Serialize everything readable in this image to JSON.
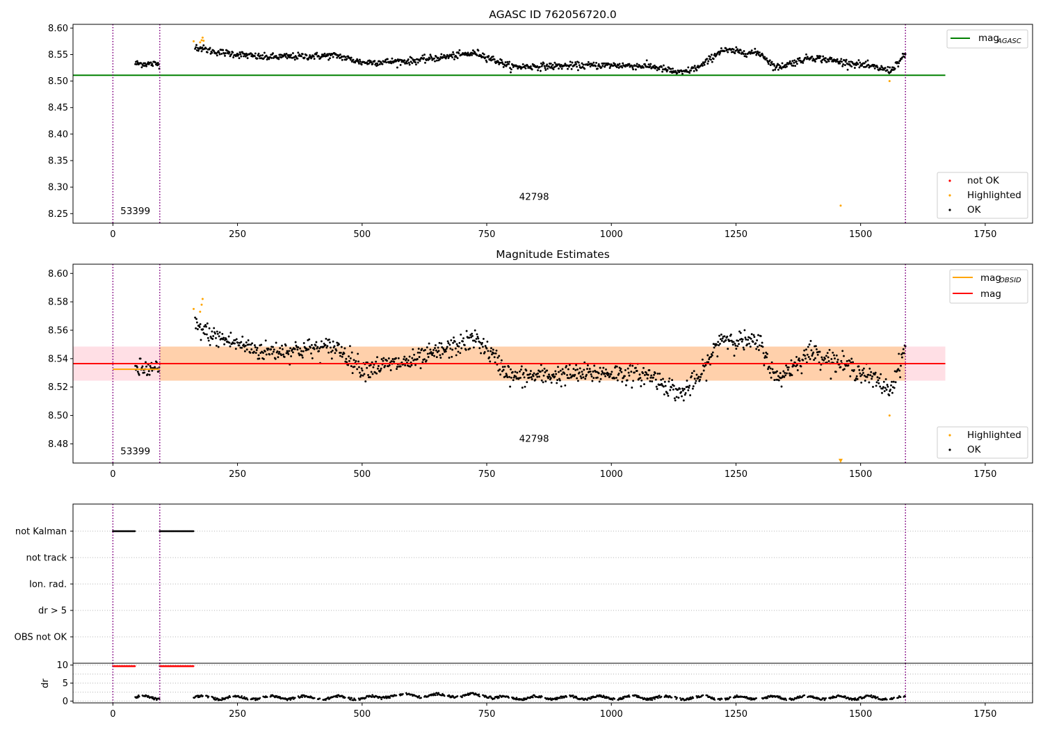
{
  "chart_data": [
    {
      "panel": "agasc",
      "type": "scatter",
      "title": "AGASC ID 762056720.0",
      "xlim": [
        -80,
        1845
      ],
      "ylim": [
        8.232,
        8.607
      ],
      "xticks": [
        0,
        250,
        500,
        750,
        1000,
        1250,
        1500,
        1750
      ],
      "yticks": [
        8.25,
        8.3,
        8.35,
        8.4,
        8.45,
        8.5,
        8.55,
        8.6
      ],
      "ytick_labels": [
        "8.25",
        "8.30",
        "8.35",
        "8.40",
        "8.45",
        "8.50",
        "8.55",
        "8.60"
      ],
      "vlines": [
        0,
        94,
        1590
      ],
      "vline_color": "#800080",
      "hline": {
        "name": "mag_AGASC",
        "y": 8.511,
        "x_range": [
          -80,
          1670
        ],
        "color": "#008000"
      },
      "annotations": [
        {
          "text": "53399",
          "x": 45,
          "y": 8.249
        },
        {
          "text": "42798",
          "x": 845,
          "y": 8.276
        }
      ],
      "legend_top": {
        "entries": [
          {
            "label": "mag",
            "sub": "AGASC",
            "color": "#008000"
          }
        ]
      },
      "legend_bottom": {
        "entries": [
          {
            "label": "not OK",
            "color": "#ff0000"
          },
          {
            "label": "Highlighted",
            "color": "#ffa500"
          },
          {
            "label": "OK",
            "color": "#000000"
          }
        ]
      },
      "series": [
        {
          "name": "OK",
          "color": "#000000",
          "segments": [
            {
              "x_start": 45,
              "x_end": 94,
              "y": [
                [
                  45,
                  8.533
                ],
                [
                  94,
                  8.532
                ]
              ],
              "noise": 0.006
            },
            {
              "x_start": 165,
              "x_end": 1590,
              "y": [
                [
                  165,
                  8.565
                ],
                [
                  200,
                  8.556
                ],
                [
                  300,
                  8.545
                ],
                [
                  450,
                  8.548
                ],
                [
                  500,
                  8.535
                ],
                [
                  600,
                  8.538
                ],
                [
                  730,
                  8.553
                ],
                [
                  800,
                  8.527
                ],
                [
                  1000,
                  8.53
                ],
                [
                  1080,
                  8.528
                ],
                [
                  1140,
                  8.515
                ],
                [
                  1180,
                  8.528
                ],
                [
                  1220,
                  8.558
                ],
                [
                  1300,
                  8.552
                ],
                [
                  1330,
                  8.525
                ],
                [
                  1400,
                  8.545
                ],
                [
                  1500,
                  8.531
                ],
                [
                  1560,
                  8.52
                ],
                [
                  1590,
                  8.549
                ]
              ],
              "noise": 0.006
            }
          ]
        },
        {
          "name": "Highlighted",
          "color": "#ffa500",
          "points": [
            [
              162,
              8.575
            ],
            [
              175,
              8.573
            ],
            [
              178,
              8.577
            ],
            [
              180,
              8.582
            ],
            [
              182,
              8.576
            ],
            [
              1460,
              8.265
            ],
            [
              1558,
              8.5
            ]
          ]
        }
      ]
    },
    {
      "panel": "estimates",
      "type": "scatter",
      "title": "Magnitude Estimates",
      "xlim": [
        -80,
        1845
      ],
      "ylim": [
        8.4665,
        8.6065
      ],
      "xticks": [
        0,
        250,
        500,
        750,
        1000,
        1250,
        1500,
        1750
      ],
      "yticks": [
        8.48,
        8.5,
        8.52,
        8.54,
        8.56,
        8.58,
        8.6
      ],
      "ytick_labels": [
        "8.48",
        "8.50",
        "8.52",
        "8.54",
        "8.56",
        "8.58",
        "8.60"
      ],
      "vlines": [
        0,
        94,
        1590
      ],
      "mag_line": {
        "name": "mag",
        "y": 8.5365,
        "x_range": [
          -80,
          1670
        ],
        "color": "#ff0000"
      },
      "mag_band": {
        "y_range": [
          8.5245,
          8.5485
        ],
        "x_range": [
          -80,
          1670
        ],
        "color": "#ffc0cb"
      },
      "obsid_segments": [
        {
          "x_range": [
            0,
            94
          ],
          "y": 8.5325
        },
        {
          "x_range": [
            94,
            1590
          ],
          "y": 8.5365
        }
      ],
      "obsid_band": {
        "x_range": [
          94,
          1590
        ],
        "y_range": [
          8.5245,
          8.5485
        ],
        "color": "#ffa500"
      },
      "annotations": [
        {
          "text": "53399",
          "x": 45,
          "y": 8.4725
        },
        {
          "text": "42798",
          "x": 845,
          "y": 8.4815
        }
      ],
      "legend_top": {
        "entries": [
          {
            "label": "mag",
            "sub": "OBSID",
            "color": "#ffa500"
          },
          {
            "label": "mag",
            "sub": "",
            "color": "#ff0000"
          }
        ]
      },
      "legend_bottom": {
        "entries": [
          {
            "label": "Highlighted",
            "color": "#ffa500"
          },
          {
            "label": "OK",
            "color": "#000000"
          }
        ]
      },
      "series": [
        {
          "name": "OK",
          "color": "#000000",
          "segments": [
            {
              "x_start": 45,
              "x_end": 94,
              "y": [
                [
                  45,
                  8.533
                ],
                [
                  94,
                  8.532
                ]
              ],
              "noise": 0.0065
            },
            {
              "x_start": 165,
              "x_end": 1590,
              "y": [
                [
                  165,
                  8.563
                ],
                [
                  200,
                  8.556
                ],
                [
                  300,
                  8.545
                ],
                [
                  450,
                  8.548
                ],
                [
                  500,
                  8.533
                ],
                [
                  600,
                  8.538
                ],
                [
                  730,
                  8.554
                ],
                [
                  800,
                  8.527
                ],
                [
                  1000,
                  8.53
                ],
                [
                  1080,
                  8.528
                ],
                [
                  1140,
                  8.515
                ],
                [
                  1180,
                  8.528
                ],
                [
                  1220,
                  8.555
                ],
                [
                  1300,
                  8.55
                ],
                [
                  1330,
                  8.525
                ],
                [
                  1400,
                  8.545
                ],
                [
                  1500,
                  8.531
                ],
                [
                  1560,
                  8.518
                ],
                [
                  1590,
                  8.548
                ]
              ],
              "noise": 0.0065
            }
          ]
        },
        {
          "name": "Highlighted",
          "color": "#ffa500",
          "points": [
            [
              162,
              8.575
            ],
            [
              175,
              8.573
            ],
            [
              178,
              8.578
            ],
            [
              180,
              8.582
            ],
            [
              1558,
              8.5
            ]
          ],
          "marker_points": [
            [
              1460,
              8.468
            ]
          ]
        }
      ]
    },
    {
      "panel": "flags",
      "type": "scatter",
      "xlim": [
        -80,
        1845
      ],
      "categories": [
        "not Kalman",
        "not track",
        "Ion. rad.",
        "dr > 5",
        "OBS not OK"
      ],
      "vlines": [
        0,
        94,
        1590
      ],
      "flag_ranges": [
        {
          "category": "not Kalman",
          "ranges": [
            [
              0,
              45
            ],
            [
              94,
              162
            ]
          ]
        }
      ],
      "xticks": [
        0,
        250,
        500,
        750,
        1000,
        1250,
        1500,
        1750
      ]
    },
    {
      "panel": "dr",
      "type": "scatter",
      "ylabel": "dr",
      "xlim": [
        -80,
        1845
      ],
      "ylim": [
        -0.5,
        10.5
      ],
      "yticks": [
        0,
        5,
        10
      ],
      "ytick_labels": [
        "0",
        "5",
        "10"
      ],
      "xticks": [
        0,
        250,
        500,
        750,
        1000,
        1250,
        1500,
        1750
      ],
      "xtick_labels": [
        "0",
        "250",
        "500",
        "750",
        "1000",
        "1250",
        "1500",
        "1750"
      ],
      "vlines": [
        0,
        94,
        1590
      ],
      "clipped": {
        "color": "#ff0000",
        "y": 9.7,
        "ranges": [
          [
            0,
            45
          ],
          [
            94,
            162
          ]
        ]
      },
      "ok_ranges": [
        [
          45,
          94
        ],
        [
          162,
          1590
        ]
      ],
      "typical_range": [
        0.2,
        2.3
      ]
    }
  ],
  "tick_labels_x": [
    "0",
    "250",
    "500",
    "750",
    "1000",
    "1250",
    "1500",
    "1750"
  ]
}
